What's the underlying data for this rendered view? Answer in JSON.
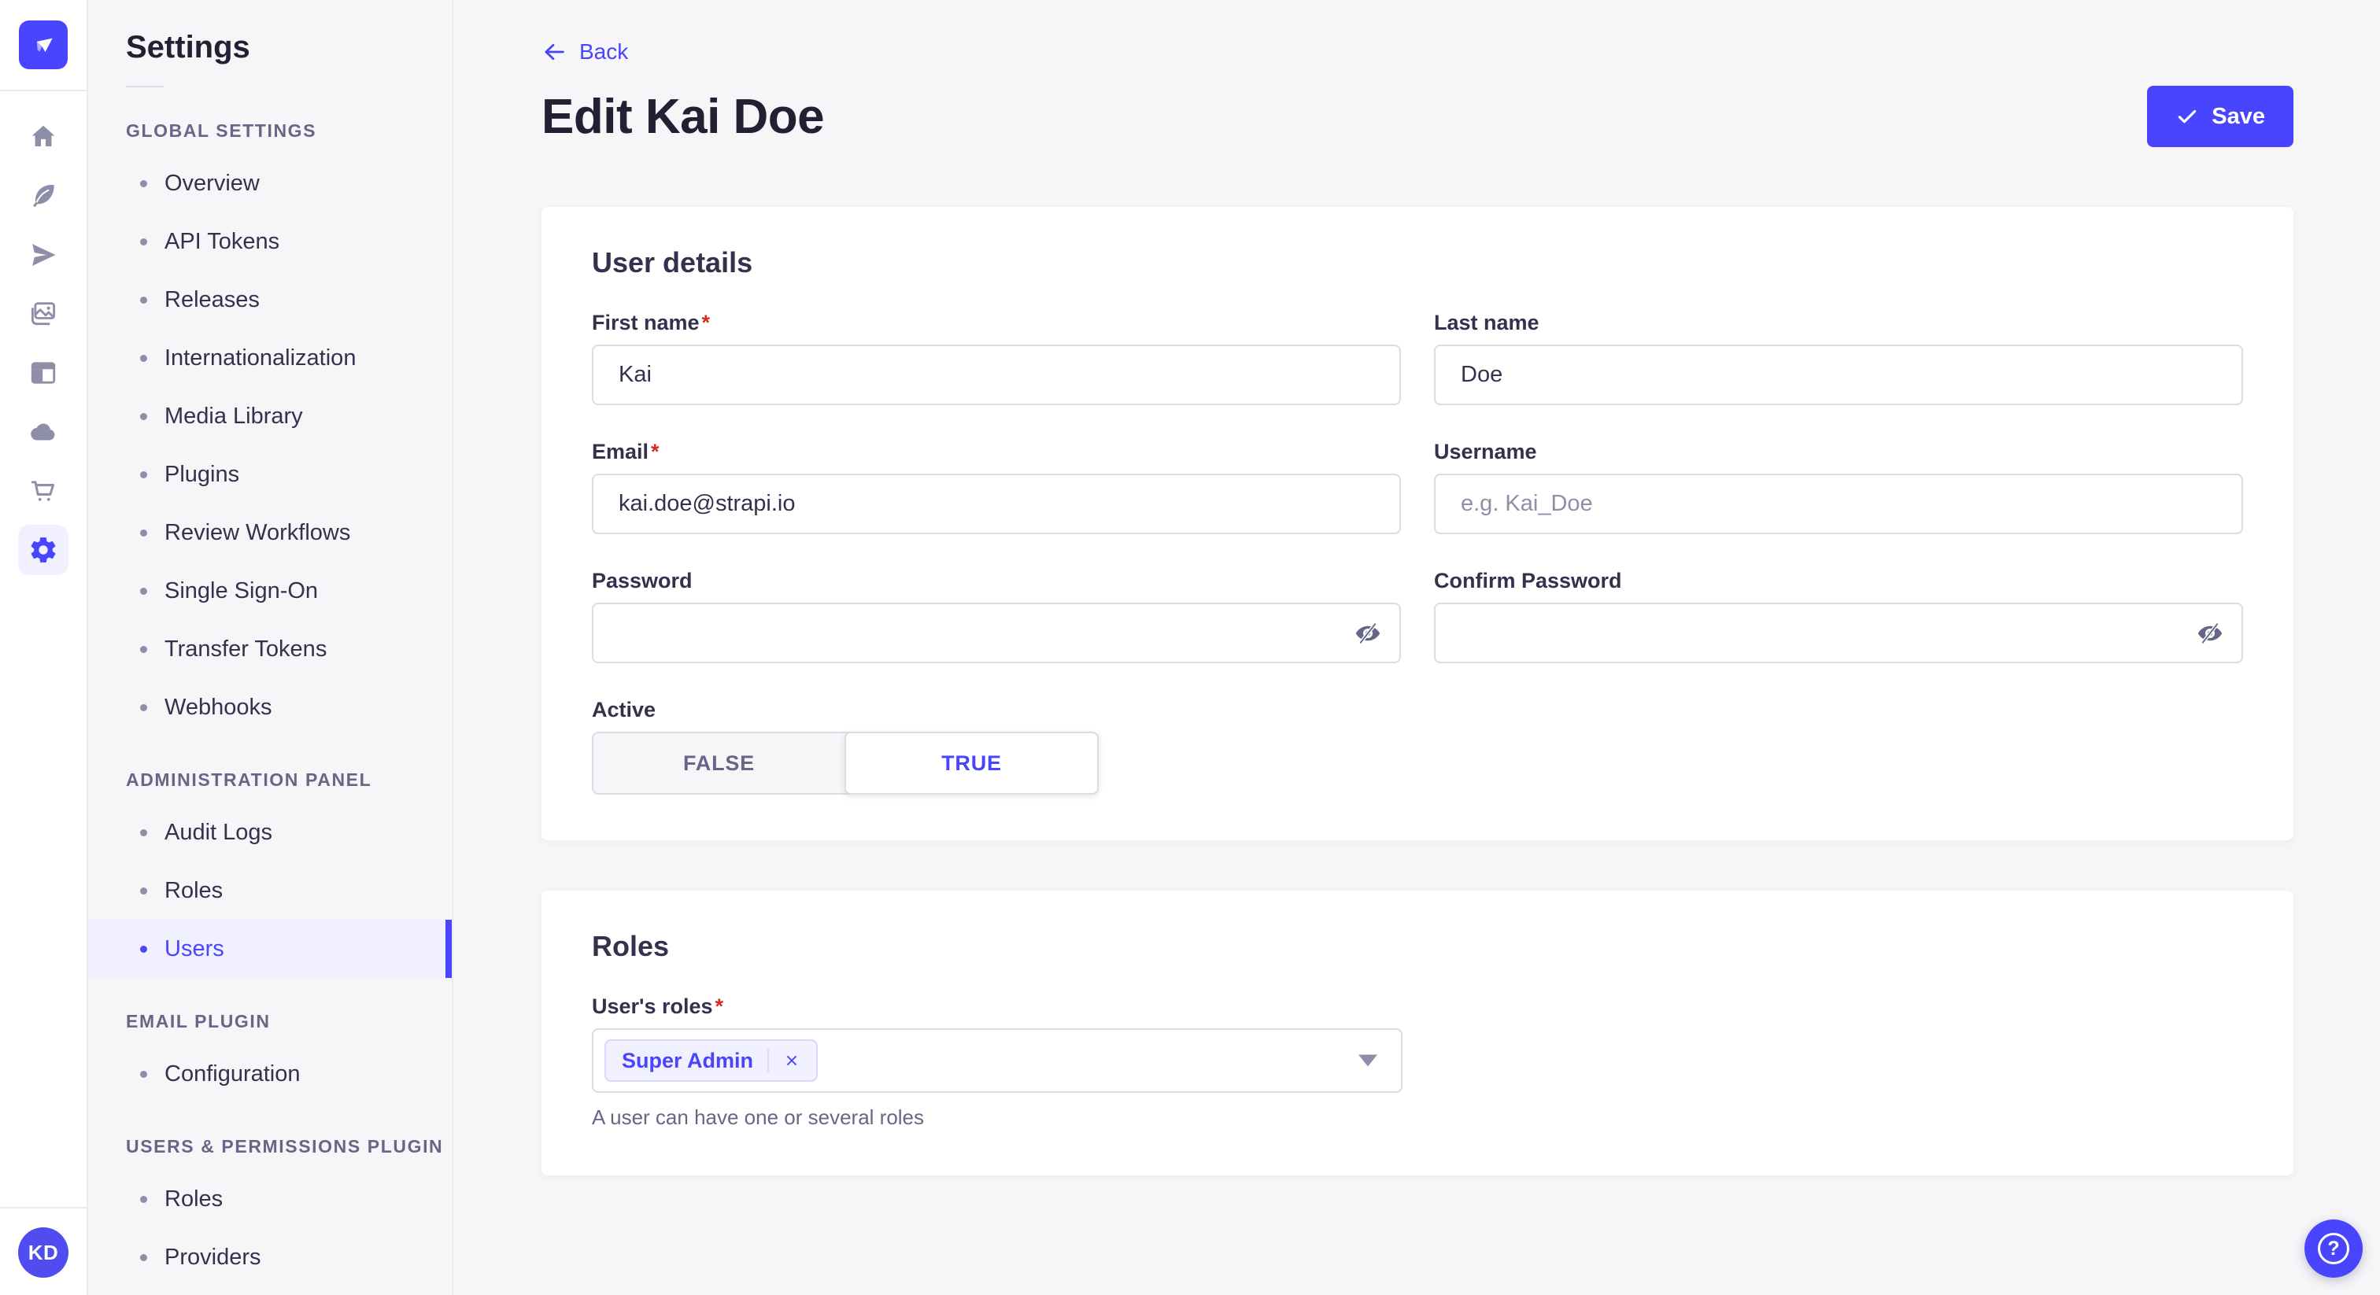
{
  "colors": {
    "primary": "#4945FF",
    "primary_light_bg": "#F0F0FF",
    "primary_tag_border": "#D9D8FF",
    "danger": "#D02B20",
    "text_dark": "#212134",
    "text_body": "#32324D",
    "text_muted": "#666687",
    "border": "#DCDCE4",
    "page_bg": "#F6F6F9"
  },
  "ui": {
    "required_marker": "*",
    "help_question_mark": "?"
  },
  "icon_rail": {
    "logo": "strapi-logo-icon",
    "items": [
      "home-icon",
      "feather-icon",
      "paper-plane-icon",
      "images-icon",
      "layout-icon",
      "cloud-icon",
      "cart-icon",
      "gear-icon"
    ],
    "active_item": "gear-icon",
    "avatar_initials": "KD"
  },
  "sidebar": {
    "title": "Settings",
    "sections": [
      {
        "label": "GLOBAL SETTINGS",
        "items": [
          {
            "label": "Overview"
          },
          {
            "label": "API Tokens"
          },
          {
            "label": "Releases"
          },
          {
            "label": "Internationalization"
          },
          {
            "label": "Media Library"
          },
          {
            "label": "Plugins"
          },
          {
            "label": "Review Workflows"
          },
          {
            "label": "Single Sign-On"
          },
          {
            "label": "Transfer Tokens"
          },
          {
            "label": "Webhooks"
          }
        ]
      },
      {
        "label": "ADMINISTRATION PANEL",
        "items": [
          {
            "label": "Audit Logs"
          },
          {
            "label": "Roles"
          },
          {
            "label": "Users",
            "active": true
          }
        ]
      },
      {
        "label": "EMAIL PLUGIN",
        "items": [
          {
            "label": "Configuration"
          }
        ]
      },
      {
        "label": "USERS & PERMISSIONS PLUGIN",
        "items": [
          {
            "label": "Roles"
          },
          {
            "label": "Providers"
          }
        ]
      }
    ]
  },
  "header": {
    "back_label": "Back",
    "title": "Edit Kai Doe",
    "save_label": "Save"
  },
  "user_details": {
    "heading": "User details",
    "fields": {
      "first_name": {
        "label": "First name",
        "required": true,
        "value": "Kai"
      },
      "last_name": {
        "label": "Last name",
        "required": false,
        "value": "Doe"
      },
      "email": {
        "label": "Email",
        "required": true,
        "value": "kai.doe@strapi.io"
      },
      "username": {
        "label": "Username",
        "required": false,
        "value": "",
        "placeholder": "e.g. Kai_Doe"
      },
      "password": {
        "label": "Password",
        "required": false,
        "value": ""
      },
      "confirm_password": {
        "label": "Confirm Password",
        "required": false,
        "value": ""
      }
    },
    "active_toggle": {
      "label": "Active",
      "options": [
        "FALSE",
        "TRUE"
      ],
      "selected": "TRUE"
    }
  },
  "roles": {
    "heading": "Roles",
    "field_label": "User's roles",
    "required": true,
    "selected_tags": [
      "Super Admin"
    ],
    "hint": "A user can have one or several roles"
  }
}
